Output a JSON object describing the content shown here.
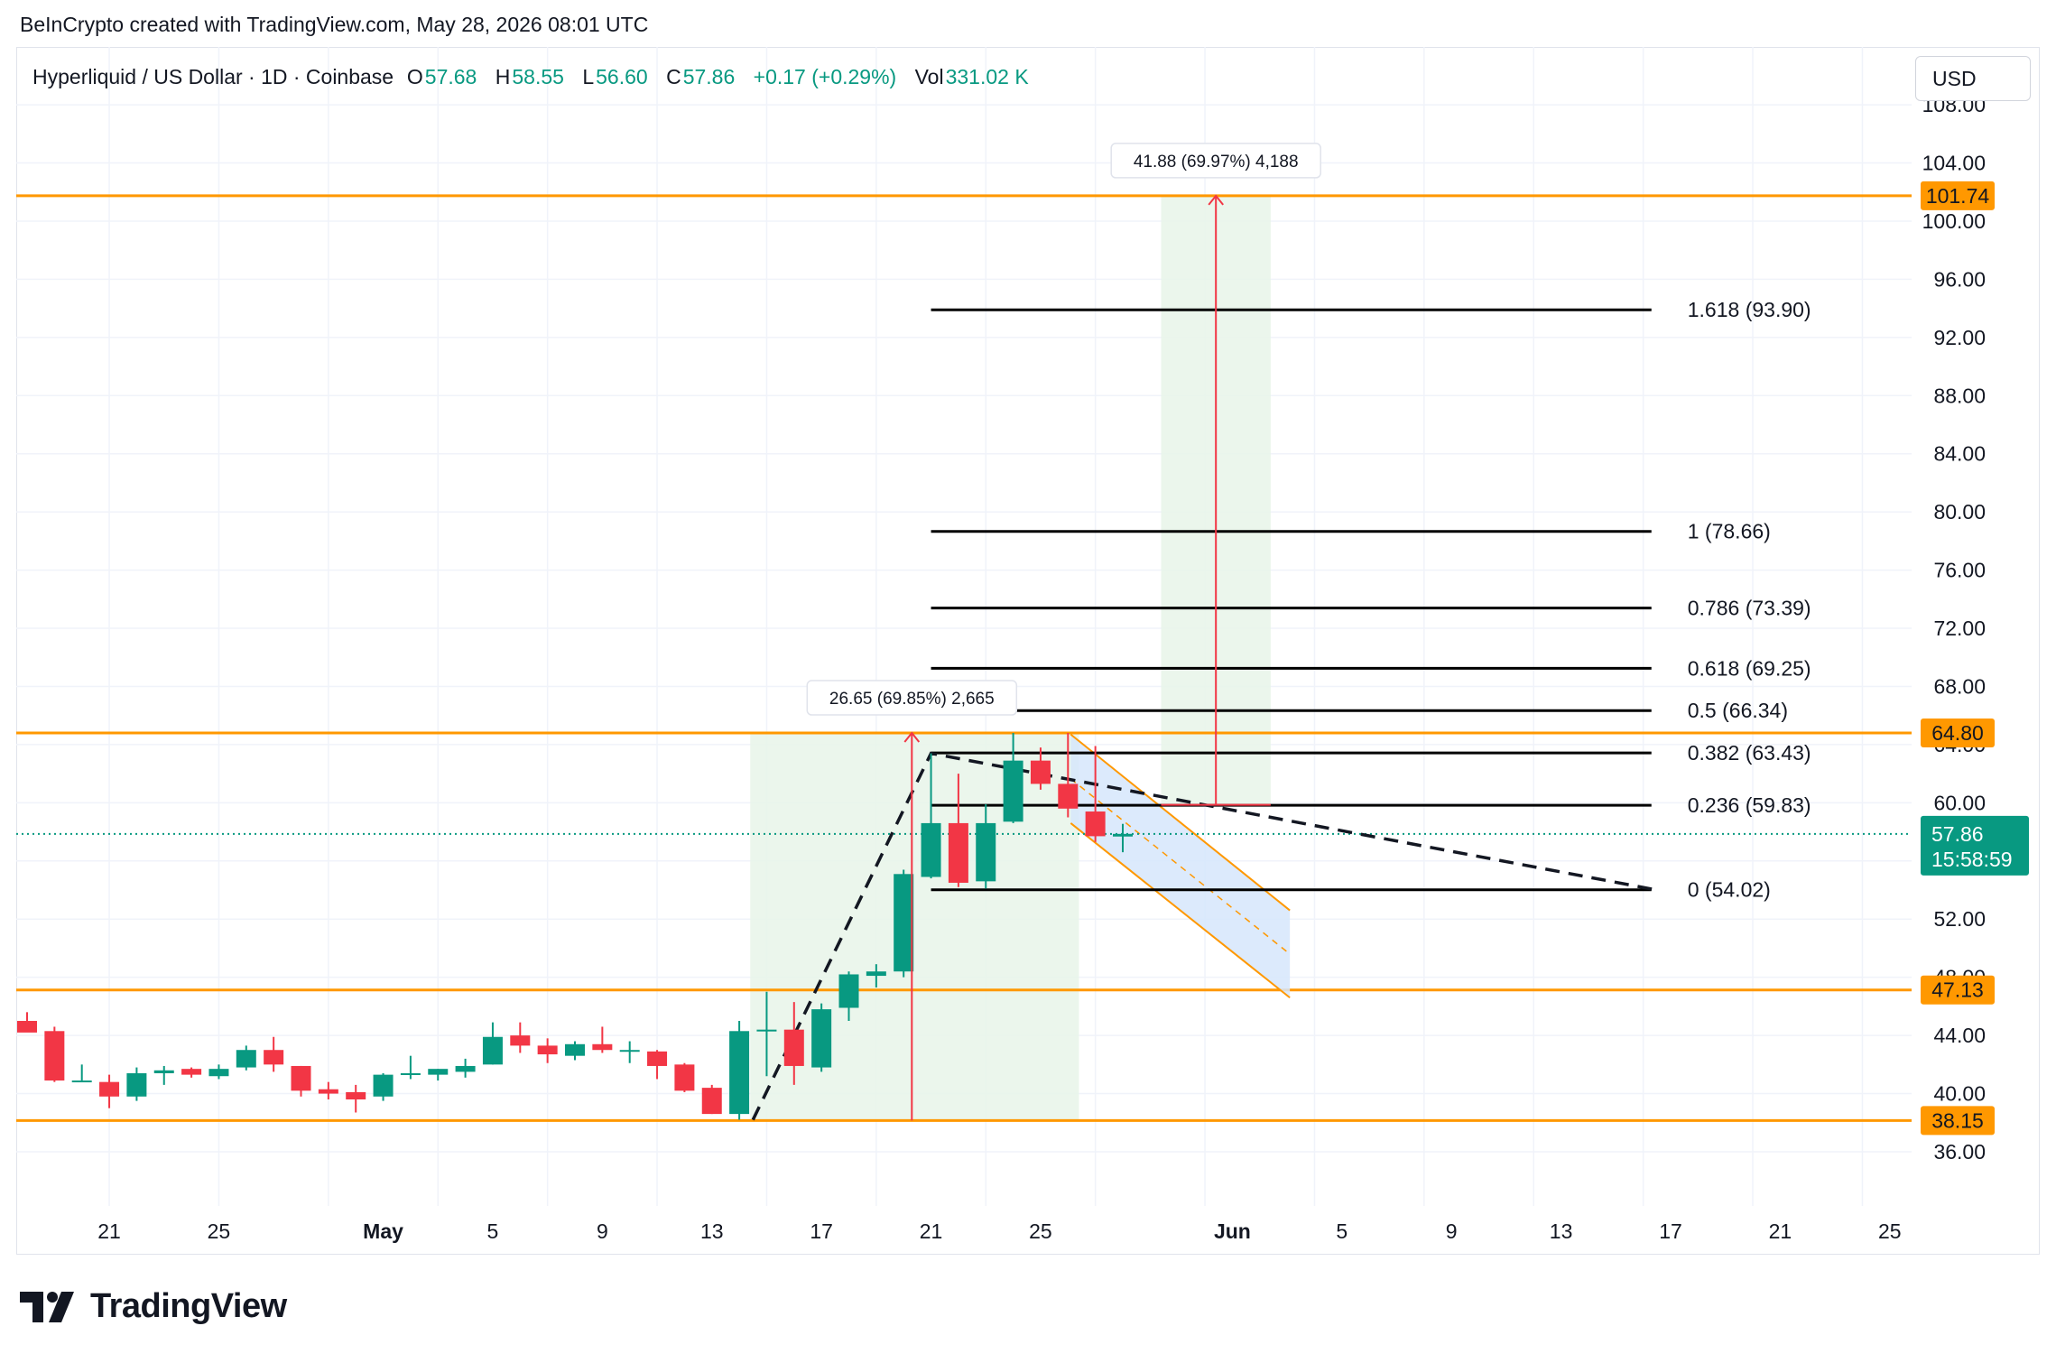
{
  "credit": "BeInCrypto created with TradingView.com, May 28, 2026 08:01 UTC",
  "symbol": {
    "title": "Hyperliquid / US Dollar · 1D · Coinbase",
    "o_label": "O",
    "o_value": "57.68",
    "h_label": "H",
    "h_value": "58.55",
    "l_label": "L",
    "l_value": "56.60",
    "c_label": "C",
    "c_value": "57.86",
    "change": "+0.17 (+0.29%)",
    "vol_label": "Vol",
    "vol_value": "331.02 K"
  },
  "currency_button": "USD",
  "logo_text": "TradingView",
  "colors": {
    "up": "#089981",
    "down": "#f23645",
    "level": "#ff9800",
    "fib": "#000000",
    "range_bg": "#e8f5e9",
    "measure": "#f23645"
  },
  "chart_data": {
    "type": "candlestick",
    "y_axis_ticks": [
      "36.00",
      "40.00",
      "44.00",
      "48.00",
      "52.00",
      "56.00",
      "60.00",
      "64.00",
      "68.00",
      "72.00",
      "76.00",
      "80.00",
      "84.00",
      "88.00",
      "92.00",
      "96.00",
      "100.00",
      "104.00",
      "108.00"
    ],
    "ylim": [
      34.4,
      116
    ],
    "x_axis_ticks": [
      {
        "day": 3,
        "label": "21"
      },
      {
        "day": 7,
        "label": "25"
      },
      {
        "day": 13,
        "label": "May"
      },
      {
        "day": 17,
        "label": "5"
      },
      {
        "day": 21,
        "label": "9"
      },
      {
        "day": 25,
        "label": "13"
      },
      {
        "day": 29,
        "label": "17"
      },
      {
        "day": 33,
        "label": "21"
      },
      {
        "day": 37,
        "label": "25"
      },
      {
        "day": 44,
        "label": "Jun"
      },
      {
        "day": 48,
        "label": "5"
      },
      {
        "day": 52,
        "label": "9"
      },
      {
        "day": 56,
        "label": "13"
      },
      {
        "day": 60,
        "label": "17"
      },
      {
        "day": 64,
        "label": "21"
      },
      {
        "day": 68,
        "label": "25"
      }
    ],
    "candles": [
      {
        "o": 45.0,
        "h": 45.6,
        "l": 44.3,
        "c": 44.2
      },
      {
        "o": 44.3,
        "h": 44.6,
        "l": 40.8,
        "c": 40.9
      },
      {
        "o": 40.9,
        "h": 42.0,
        "l": 40.9,
        "c": 40.9
      },
      {
        "o": 40.8,
        "h": 41.3,
        "l": 39.0,
        "c": 39.8
      },
      {
        "o": 39.8,
        "h": 41.8,
        "l": 39.5,
        "c": 41.4
      },
      {
        "o": 41.4,
        "h": 41.9,
        "l": 40.6,
        "c": 41.6
      },
      {
        "o": 41.7,
        "h": 41.8,
        "l": 41.1,
        "c": 41.3
      },
      {
        "o": 41.2,
        "h": 42.0,
        "l": 41.0,
        "c": 41.7
      },
      {
        "o": 41.8,
        "h": 43.3,
        "l": 41.6,
        "c": 43.0
      },
      {
        "o": 43.0,
        "h": 43.9,
        "l": 41.5,
        "c": 42.0
      },
      {
        "o": 41.9,
        "h": 41.9,
        "l": 39.8,
        "c": 40.2
      },
      {
        "o": 40.3,
        "h": 40.8,
        "l": 39.6,
        "c": 40.0
      },
      {
        "o": 40.1,
        "h": 40.6,
        "l": 38.7,
        "c": 39.6
      },
      {
        "o": 39.8,
        "h": 41.4,
        "l": 39.5,
        "c": 41.3
      },
      {
        "o": 41.3,
        "h": 42.6,
        "l": 41.0,
        "c": 41.4
      },
      {
        "o": 41.3,
        "h": 41.7,
        "l": 40.9,
        "c": 41.7
      },
      {
        "o": 41.5,
        "h": 42.4,
        "l": 41.1,
        "c": 41.9
      },
      {
        "o": 42.0,
        "h": 44.9,
        "l": 42.0,
        "c": 43.9
      },
      {
        "o": 44.0,
        "h": 44.9,
        "l": 42.8,
        "c": 43.3
      },
      {
        "o": 43.3,
        "h": 43.8,
        "l": 42.1,
        "c": 42.7
      },
      {
        "o": 42.6,
        "h": 43.6,
        "l": 42.3,
        "c": 43.4
      },
      {
        "o": 43.4,
        "h": 44.6,
        "l": 42.8,
        "c": 43.0
      },
      {
        "o": 42.9,
        "h": 43.6,
        "l": 42.1,
        "c": 43.0
      },
      {
        "o": 42.9,
        "h": 43.0,
        "l": 41.0,
        "c": 41.9
      },
      {
        "o": 42.0,
        "h": 42.1,
        "l": 40.1,
        "c": 40.2
      },
      {
        "o": 40.4,
        "h": 40.6,
        "l": 38.6,
        "c": 38.6
      },
      {
        "o": 38.6,
        "h": 45.0,
        "l": 38.2,
        "c": 44.3
      },
      {
        "o": 44.3,
        "h": 47.0,
        "l": 41.2,
        "c": 44.4
      },
      {
        "o": 44.4,
        "h": 46.3,
        "l": 40.6,
        "c": 41.9
      },
      {
        "o": 41.8,
        "h": 46.2,
        "l": 41.5,
        "c": 45.8
      },
      {
        "o": 45.9,
        "h": 48.4,
        "l": 45.0,
        "c": 48.2
      },
      {
        "o": 48.1,
        "h": 48.9,
        "l": 47.3,
        "c": 48.4
      },
      {
        "o": 48.4,
        "h": 55.4,
        "l": 48.0,
        "c": 55.1
      },
      {
        "o": 54.9,
        "h": 63.4,
        "l": 54.8,
        "c": 58.6
      },
      {
        "o": 58.6,
        "h": 62.0,
        "l": 54.2,
        "c": 54.5
      },
      {
        "o": 54.6,
        "h": 59.9,
        "l": 54.1,
        "c": 58.6
      },
      {
        "o": 58.7,
        "h": 64.8,
        "l": 58.6,
        "c": 62.9
      },
      {
        "o": 62.9,
        "h": 63.8,
        "l": 60.9,
        "c": 61.3
      },
      {
        "o": 61.3,
        "h": 64.8,
        "l": 59.0,
        "c": 59.6
      },
      {
        "o": 59.4,
        "h": 63.9,
        "l": 57.3,
        "c": 57.7
      },
      {
        "o": 57.68,
        "h": 58.55,
        "l": 56.6,
        "c": 57.86
      }
    ],
    "horizontal_levels": [
      101.74,
      64.8,
      47.13,
      38.15
    ],
    "level_labels": [
      "101.74",
      "64.80",
      "47.13",
      "38.15"
    ],
    "current_price": 57.86,
    "current_price_label": "57.86",
    "countdown_label": "15:58:59",
    "fib_levels": [
      {
        "level": 1.618,
        "price": 93.9,
        "label": "1.618 (93.90)"
      },
      {
        "level": 1,
        "price": 78.66,
        "label": "1 (78.66)"
      },
      {
        "level": 0.786,
        "price": 73.39,
        "label": "0.786 (73.39)"
      },
      {
        "level": 0.618,
        "price": 69.25,
        "label": "0.618 (69.25)"
      },
      {
        "level": 0.5,
        "price": 66.34,
        "label": "0.5 (66.34)"
      },
      {
        "level": 0.382,
        "price": 63.43,
        "label": "0.382 (63.43)"
      },
      {
        "level": 0.236,
        "price": 59.83,
        "label": "0.236 (59.83)"
      },
      {
        "level": 0,
        "price": 54.02,
        "label": "0 (54.02)"
      }
    ],
    "fib_start_day": 33,
    "fib_end_day": 59.3,
    "measure_1": {
      "label": "26.65 (69.85%) 2,665",
      "day_start": 26.4,
      "day_end": 38.4,
      "price_from": 38.15,
      "price_to": 64.8,
      "arrow_day": 32.3
    },
    "measure_2": {
      "label": "41.88 (69.97%) 4,188",
      "day_start": 41.4,
      "day_end": 45.4,
      "price_from": 59.86,
      "price_to": 101.74,
      "arrow_day": 43.4
    },
    "trend_path": [
      {
        "day": 26.5,
        "price": 38.2
      },
      {
        "day": 33.0,
        "price": 63.4
      },
      {
        "day": 59.5,
        "price": 54.0
      }
    ],
    "channel": {
      "upper": [
        {
          "day": 38.1,
          "price": 64.7
        },
        {
          "day": 46.1,
          "price": 52.6
        }
      ],
      "lower": [
        {
          "day": 38.1,
          "price": 58.6
        },
        {
          "day": 46.1,
          "price": 46.6
        }
      ]
    }
  }
}
